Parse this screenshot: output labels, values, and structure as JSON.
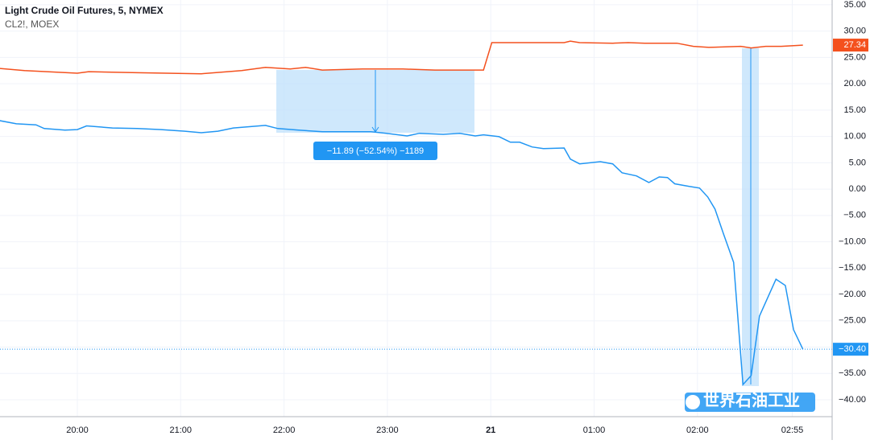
{
  "chart_data": {
    "type": "line",
    "title": "Light Crude Oil Futures, 5, NYMEX",
    "subtitle": "CL2!, MOEX",
    "annotation": "−11.89 (−52.54%) −1189",
    "watermark": "世界石油工业",
    "xlim": [
      19.252,
      27.303
    ],
    "ylim": [
      -43.2,
      35.9
    ],
    "xticks": [
      {
        "value": 20,
        "label": "20:00"
      },
      {
        "value": 21,
        "label": "21:00"
      },
      {
        "value": 22,
        "label": "22:00"
      },
      {
        "value": 23,
        "label": "23:00"
      },
      {
        "value": 24,
        "label": "21"
      },
      {
        "value": 25,
        "label": "01:00"
      },
      {
        "value": 26,
        "label": "02:00"
      },
      {
        "value": 26.917,
        "label": "02:55"
      }
    ],
    "yticks": [
      {
        "value": 35,
        "label": "35.00"
      },
      {
        "value": 30,
        "label": "30.00"
      },
      {
        "value": 25,
        "label": "25.00"
      },
      {
        "value": 20,
        "label": "20.00"
      },
      {
        "value": 15,
        "label": "15.00"
      },
      {
        "value": 10,
        "label": "10.00"
      },
      {
        "value": 5,
        "label": "5.00"
      },
      {
        "value": 0,
        "label": "0.00"
      },
      {
        "value": -5,
        "label": "−5.00"
      },
      {
        "value": -10,
        "label": "−10.00"
      },
      {
        "value": -15,
        "label": "−15.00"
      },
      {
        "value": -20,
        "label": "−20.00"
      },
      {
        "value": -25,
        "label": "−25.00"
      },
      {
        "value": -30,
        "label": "−30.00"
      },
      {
        "value": -35,
        "label": "−35.00"
      },
      {
        "value": -40,
        "label": "−40.00"
      }
    ],
    "grid": true,
    "series": [
      {
        "name": "Light Crude Oil Futures, 5, NYMEX",
        "color": "#2196f3",
        "x": [
          19.25,
          19.41,
          19.6,
          19.68,
          19.88,
          20.0,
          20.09,
          20.34,
          20.58,
          20.81,
          21.04,
          21.2,
          21.36,
          21.51,
          21.82,
          21.94,
          22.14,
          22.37,
          22.6,
          22.84,
          22.99,
          23.19,
          23.31,
          23.54,
          23.7,
          23.85,
          23.93,
          24.08,
          24.19,
          24.28,
          24.4,
          24.51,
          24.71,
          24.77,
          24.86,
          25.06,
          25.18,
          25.27,
          25.41,
          25.53,
          25.63,
          25.71,
          25.78,
          25.92,
          26.02,
          26.1,
          26.17,
          26.25,
          26.35,
          26.44,
          26.52,
          26.6,
          26.76,
          26.85,
          26.93,
          27.02
        ],
        "values": [
          13.0,
          12.4,
          12.2,
          11.5,
          11.2,
          11.3,
          12.0,
          11.6,
          11.5,
          11.3,
          11.0,
          10.7,
          11.0,
          11.6,
          12.1,
          11.5,
          11.2,
          10.9,
          10.9,
          10.9,
          10.6,
          10.1,
          10.6,
          10.4,
          10.6,
          10.1,
          10.3,
          9.95,
          8.9,
          8.9,
          8.0,
          7.7,
          7.8,
          5.7,
          4.8,
          5.2,
          4.8,
          3.1,
          2.5,
          1.25,
          2.3,
          2.2,
          1.0,
          0.5,
          0.2,
          -1.5,
          -3.8,
          -8.4,
          -13.9,
          -37.1,
          -35.4,
          -24.1,
          -17.1,
          -18.3,
          -26.7,
          -30.4
        ],
        "value_labels": [
          null,
          null,
          null,
          null,
          null,
          null,
          null,
          null,
          null,
          null,
          null,
          null,
          null,
          null,
          null,
          null,
          null,
          null,
          null,
          null,
          null,
          null,
          null,
          null,
          null,
          null,
          null,
          null,
          null,
          null,
          null,
          null,
          null,
          null,
          null,
          null,
          null,
          null,
          null,
          null,
          null,
          null,
          null,
          null,
          null,
          null,
          null,
          null,
          null,
          null,
          null,
          null,
          null,
          null,
          null,
          "−30.40"
        ]
      },
      {
        "name": "CL2!, MOEX",
        "color": "#f4511e",
        "x": [
          19.25,
          19.49,
          20.0,
          20.11,
          20.58,
          21.2,
          21.59,
          21.82,
          22.06,
          22.21,
          22.37,
          22.76,
          23.15,
          23.46,
          23.93,
          24.01,
          24.24,
          24.71,
          24.77,
          24.86,
          25.18,
          25.33,
          25.49,
          25.8,
          25.96,
          26.11,
          26.42,
          26.52,
          26.66,
          26.81,
          27.02
        ],
        "values": [
          22.9,
          22.5,
          22.0,
          22.3,
          22.1,
          21.9,
          22.5,
          23.1,
          22.8,
          23.1,
          22.6,
          22.8,
          22.8,
          22.6,
          22.6,
          27.8,
          27.8,
          27.8,
          28.1,
          27.8,
          27.7,
          27.8,
          27.7,
          27.7,
          27.1,
          26.9,
          27.1,
          26.8,
          27.1,
          27.1,
          27.34
        ],
        "value_labels": [
          null,
          null,
          null,
          null,
          null,
          null,
          null,
          null,
          null,
          null,
          null,
          null,
          null,
          null,
          null,
          null,
          null,
          null,
          null,
          null,
          null,
          null,
          null,
          null,
          null,
          null,
          null,
          null,
          null,
          null,
          "27.34"
        ]
      }
    ]
  }
}
